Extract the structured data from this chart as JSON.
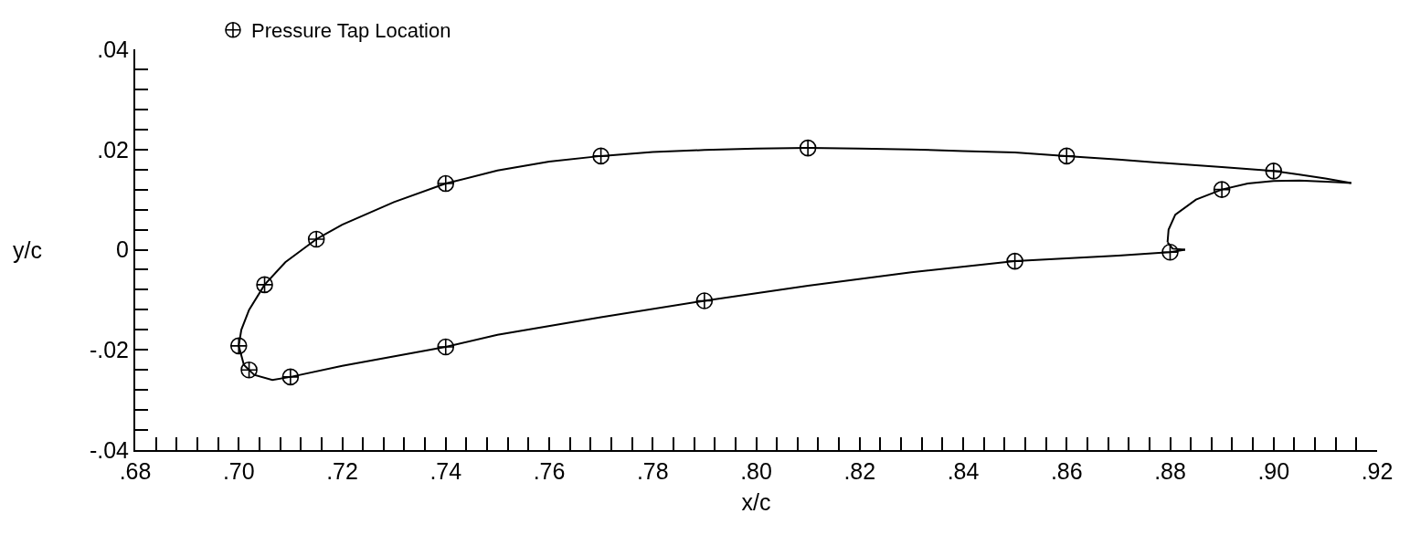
{
  "chart_data": {
    "type": "line",
    "xlabel": "x/c",
    "ylabel": "y/c",
    "xlim": [
      0.68,
      0.92
    ],
    "ylim": [
      -0.04,
      0.04
    ],
    "xticks": [
      {
        "value": 0.68,
        "label": ".68"
      },
      {
        "value": 0.684,
        "label": null
      },
      {
        "value": 0.688,
        "label": null
      },
      {
        "value": 0.692,
        "label": null
      },
      {
        "value": 0.696,
        "label": null
      },
      {
        "value": 0.7,
        "label": ".70"
      },
      {
        "value": 0.704,
        "label": null
      },
      {
        "value": 0.708,
        "label": null
      },
      {
        "value": 0.712,
        "label": null
      },
      {
        "value": 0.716,
        "label": null
      },
      {
        "value": 0.72,
        "label": ".72"
      },
      {
        "value": 0.724,
        "label": null
      },
      {
        "value": 0.728,
        "label": null
      },
      {
        "value": 0.732,
        "label": null
      },
      {
        "value": 0.736,
        "label": null
      },
      {
        "value": 0.74,
        "label": ".74"
      },
      {
        "value": 0.744,
        "label": null
      },
      {
        "value": 0.748,
        "label": null
      },
      {
        "value": 0.752,
        "label": null
      },
      {
        "value": 0.756,
        "label": null
      },
      {
        "value": 0.76,
        "label": ".76"
      },
      {
        "value": 0.764,
        "label": null
      },
      {
        "value": 0.768,
        "label": null
      },
      {
        "value": 0.772,
        "label": null
      },
      {
        "value": 0.776,
        "label": null
      },
      {
        "value": 0.78,
        "label": ".78"
      },
      {
        "value": 0.784,
        "label": null
      },
      {
        "value": 0.788,
        "label": null
      },
      {
        "value": 0.792,
        "label": null
      },
      {
        "value": 0.796,
        "label": null
      },
      {
        "value": 0.8,
        "label": ".80"
      },
      {
        "value": 0.804,
        "label": null
      },
      {
        "value": 0.808,
        "label": null
      },
      {
        "value": 0.812,
        "label": null
      },
      {
        "value": 0.816,
        "label": null
      },
      {
        "value": 0.82,
        "label": ".82"
      },
      {
        "value": 0.824,
        "label": null
      },
      {
        "value": 0.828,
        "label": null
      },
      {
        "value": 0.832,
        "label": null
      },
      {
        "value": 0.836,
        "label": null
      },
      {
        "value": 0.84,
        "label": ".84"
      },
      {
        "value": 0.844,
        "label": null
      },
      {
        "value": 0.848,
        "label": null
      },
      {
        "value": 0.852,
        "label": null
      },
      {
        "value": 0.856,
        "label": null
      },
      {
        "value": 0.86,
        "label": ".86"
      },
      {
        "value": 0.864,
        "label": null
      },
      {
        "value": 0.868,
        "label": null
      },
      {
        "value": 0.872,
        "label": null
      },
      {
        "value": 0.876,
        "label": null
      },
      {
        "value": 0.88,
        "label": ".88"
      },
      {
        "value": 0.884,
        "label": null
      },
      {
        "value": 0.888,
        "label": null
      },
      {
        "value": 0.892,
        "label": null
      },
      {
        "value": 0.896,
        "label": null
      },
      {
        "value": 0.9,
        "label": ".90"
      },
      {
        "value": 0.904,
        "label": null
      },
      {
        "value": 0.908,
        "label": null
      },
      {
        "value": 0.912,
        "label": null
      },
      {
        "value": 0.916,
        "label": null
      },
      {
        "value": 0.92,
        "label": ".92"
      }
    ],
    "yticks": [
      {
        "value": -0.04,
        "label": "-.04"
      },
      {
        "value": -0.036,
        "label": null
      },
      {
        "value": -0.032,
        "label": null
      },
      {
        "value": -0.028,
        "label": null
      },
      {
        "value": -0.024,
        "label": null
      },
      {
        "value": -0.02,
        "label": "-.02"
      },
      {
        "value": -0.016,
        "label": null
      },
      {
        "value": -0.012,
        "label": null
      },
      {
        "value": -0.008,
        "label": null
      },
      {
        "value": -0.004,
        "label": null
      },
      0,
      {
        "value": 0.004,
        "label": null
      },
      {
        "value": 0.008,
        "label": null
      },
      {
        "value": 0.012,
        "label": null
      },
      {
        "value": 0.016,
        "label": null
      },
      {
        "value": 0.02,
        "label": ".02"
      },
      {
        "value": 0.024,
        "label": null
      },
      {
        "value": 0.028,
        "label": null
      },
      {
        "value": 0.032,
        "label": null
      },
      {
        "value": 0.036,
        "label": null
      },
      {
        "value": 0.04,
        "label": ".04"
      }
    ],
    "legend": "top",
    "series": [
      {
        "color": "#000000",
        "marker": "none",
        "line_style": "solid",
        "x": [
          0.8829,
          0.88,
          0.87,
          0.85,
          0.83,
          0.81,
          0.79,
          0.77,
          0.75,
          0.74,
          0.72,
          0.71,
          0.7065,
          0.703,
          0.701,
          0.7
        ],
        "values": [
          0.0,
          -0.0005,
          -0.0012,
          -0.0023,
          -0.0045,
          -0.0072,
          -0.0102,
          -0.0135,
          -0.017,
          -0.0194,
          -0.0232,
          -0.0254,
          -0.026,
          -0.025,
          -0.023,
          -0.0192
        ]
      },
      {
        "color": "#000000",
        "marker": "none",
        "line_style": "solid",
        "x": [
          0.7,
          0.7005,
          0.702,
          0.705,
          0.709,
          0.715,
          0.72,
          0.73,
          0.74,
          0.75,
          0.76,
          0.77,
          0.78,
          0.79,
          0.8,
          0.81,
          0.82,
          0.83,
          0.84,
          0.85,
          0.86,
          0.87,
          0.88,
          0.89,
          0.9,
          0.905,
          0.91,
          0.915
        ],
        "values": [
          -0.0192,
          -0.016,
          -0.012,
          -0.007,
          -0.0025,
          0.0021,
          0.005,
          0.0095,
          0.0132,
          0.0158,
          0.0176,
          0.0187,
          0.0195,
          0.0199,
          0.0202,
          0.0203,
          0.0202,
          0.02,
          0.0197,
          0.0194,
          0.0187,
          0.018,
          0.0172,
          0.0165,
          0.0157,
          0.015,
          0.0142,
          0.0133
        ]
      },
      {
        "color": "#000000",
        "marker": "none",
        "line_style": "solid",
        "x": [
          0.915,
          0.912,
          0.905,
          0.9,
          0.895,
          0.89,
          0.885,
          0.881,
          0.8797,
          0.8795
        ],
        "values": [
          0.0133,
          0.0135,
          0.0138,
          0.0137,
          0.0132,
          0.012,
          0.01,
          0.007,
          0.004,
          0.0015
        ]
      },
      {
        "color": "#000000",
        "marker": "none",
        "line_style": "solid",
        "x": [
          0.8795,
          0.8805,
          0.8829
        ],
        "values": [
          0.0015,
          0.0002,
          0.0
        ]
      },
      {
        "type": "scatter",
        "name": "Pressure Tap Location",
        "color": "#000000",
        "marker": "cross",
        "x": [
          0.7,
          0.702,
          0.705,
          0.715,
          0.74,
          0.77,
          0.81,
          0.86,
          0.9,
          0.89,
          0.88,
          0.85,
          0.79,
          0.74,
          0.71
        ],
        "values": [
          -0.0192,
          -0.024,
          -0.007,
          0.0021,
          0.0132,
          0.0187,
          0.0203,
          0.0187,
          0.0157,
          0.012,
          -0.0005,
          -0.0023,
          -0.0102,
          -0.0194,
          -0.0254
        ]
      }
    ]
  }
}
